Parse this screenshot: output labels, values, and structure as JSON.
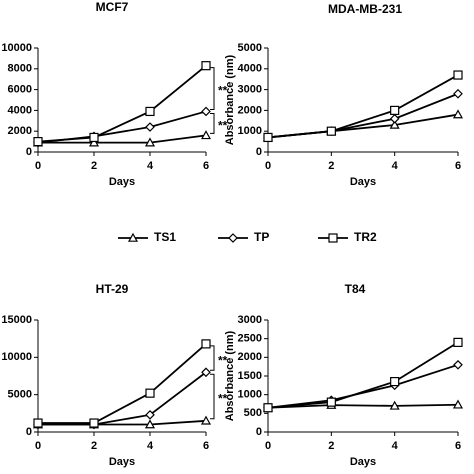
{
  "chart_data": [
    {
      "type": "line",
      "title": "MCF7",
      "xlabel": "Days",
      "x": [
        0,
        2,
        4,
        6
      ],
      "xlim": [
        0,
        6
      ],
      "xticks": [
        0,
        2,
        4,
        6
      ],
      "ylim": [
        0,
        10000
      ],
      "yticks": [
        0,
        2000,
        4000,
        6000,
        8000,
        10000
      ],
      "series": [
        {
          "name": "TS1",
          "color": "#000000",
          "marker": "triangle",
          "values": [
            900,
            900,
            900,
            1600
          ]
        },
        {
          "name": "TP",
          "color": "#000000",
          "marker": "diamond",
          "values": [
            900,
            1500,
            2400,
            3900
          ]
        },
        {
          "name": "TR2",
          "color": "#000000",
          "marker": "square",
          "values": [
            1000,
            1400,
            3900,
            8300
          ]
        }
      ],
      "annotations": [
        "**",
        "**"
      ]
    },
    {
      "type": "line",
      "title": "MDA-MB-231",
      "xlabel": "Days",
      "ylabel": "Absorbance (nm)",
      "x": [
        0,
        2,
        4,
        6
      ],
      "xlim": [
        0,
        6
      ],
      "xticks": [
        0,
        2,
        4,
        6
      ],
      "ylim": [
        0,
        5000
      ],
      "yticks": [
        0,
        1000,
        2000,
        3000,
        4000,
        5000
      ],
      "series": [
        {
          "name": "TS1",
          "color": "#000000",
          "marker": "triangle",
          "values": [
            700,
            1000,
            1300,
            1800
          ]
        },
        {
          "name": "TP",
          "color": "#000000",
          "marker": "diamond",
          "values": [
            700,
            1000,
            1600,
            2800
          ]
        },
        {
          "name": "TR2",
          "color": "#000000",
          "marker": "square",
          "values": [
            700,
            1000,
            2000,
            3700
          ]
        }
      ]
    },
    {
      "type": "line",
      "title": "HT-29",
      "xlabel": "Days",
      "x": [
        0,
        2,
        4,
        6
      ],
      "xlim": [
        0,
        6
      ],
      "xticks": [
        0,
        2,
        4,
        6
      ],
      "ylim": [
        0,
        15000
      ],
      "yticks": [
        0,
        5000,
        10000,
        15000
      ],
      "series": [
        {
          "name": "TS1",
          "color": "#000000",
          "marker": "triangle",
          "values": [
            1000,
            1000,
            1000,
            1500
          ]
        },
        {
          "name": "TP",
          "color": "#000000",
          "marker": "diamond",
          "values": [
            1000,
            1000,
            2300,
            8000
          ]
        },
        {
          "name": "TR2",
          "color": "#000000",
          "marker": "square",
          "values": [
            1200,
            1200,
            5200,
            11800
          ]
        }
      ],
      "annotations": [
        "**",
        "**"
      ]
    },
    {
      "type": "line",
      "title": "T84",
      "xlabel": "Days",
      "ylabel": "Absorbance (nm)",
      "x": [
        0,
        2,
        4,
        6
      ],
      "xlim": [
        0,
        6
      ],
      "xticks": [
        0,
        2,
        4,
        6
      ],
      "ylim": [
        0,
        3000
      ],
      "yticks": [
        0,
        500,
        1000,
        1500,
        2000,
        2500,
        3000
      ],
      "series": [
        {
          "name": "TS1",
          "color": "#000000",
          "marker": "triangle",
          "values": [
            650,
            720,
            700,
            730
          ]
        },
        {
          "name": "TP",
          "color": "#000000",
          "marker": "diamond",
          "values": [
            650,
            850,
            1250,
            1800
          ]
        },
        {
          "name": "TR2",
          "color": "#000000",
          "marker": "square",
          "values": [
            650,
            800,
            1350,
            2400
          ]
        }
      ]
    }
  ]
}
